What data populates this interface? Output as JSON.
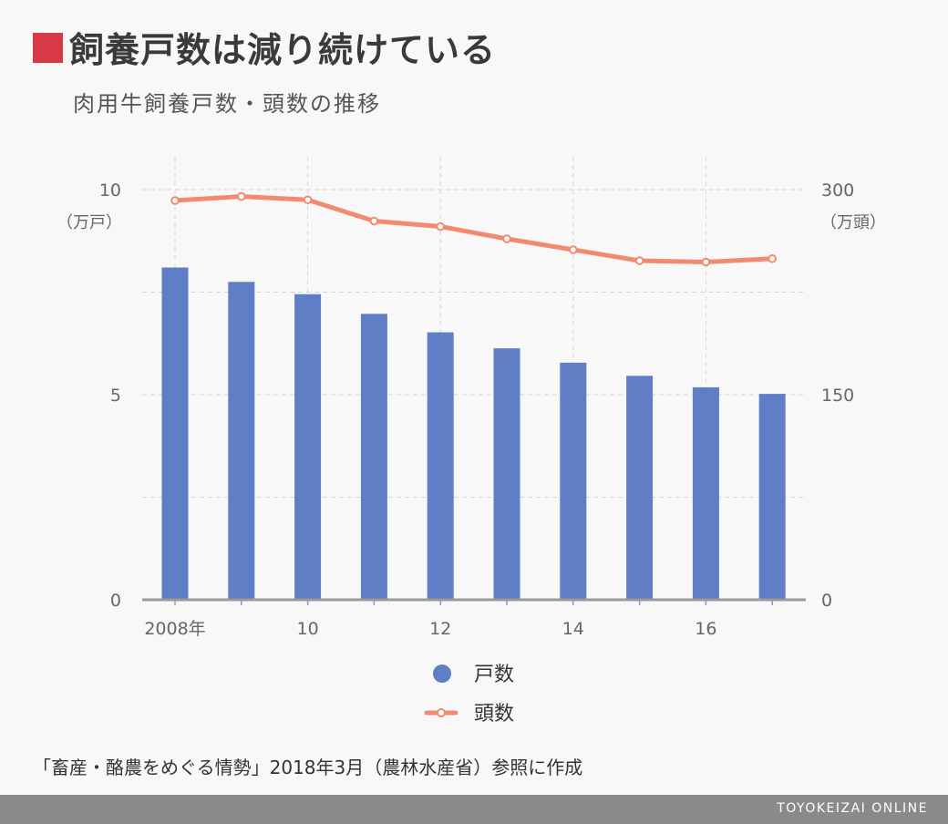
{
  "title": "飼養戸数は減り続けている",
  "subtitle": "肉用牛飼養戸数・頭数の推移",
  "source": "「畜産・酪農をめぐる情勢」2018年3月（農林水産省）参照に作成",
  "footer": "TOYOKEIZAI ONLINE",
  "colors": {
    "title_marker": "#d73a46",
    "bars": "#5f7ec5",
    "line": "#f28a72",
    "footer_bg": "#8a8a8a"
  },
  "chart_data": {
    "type": "bar+line",
    "categories": [
      "2008",
      "2009",
      "2010",
      "2011",
      "2012",
      "2013",
      "2014",
      "2015",
      "2016",
      "2017"
    ],
    "x_tick_labels": [
      "2008年",
      "",
      "10",
      "",
      "12",
      "",
      "14",
      "",
      "16",
      ""
    ],
    "series": [
      {
        "name": "戸数",
        "type": "bar",
        "axis": "left",
        "values": [
          8.1,
          7.75,
          7.45,
          6.97,
          6.52,
          6.13,
          5.78,
          5.46,
          5.18,
          5.02
        ]
      },
      {
        "name": "頭数",
        "type": "line",
        "axis": "right",
        "values": [
          292,
          295,
          292.5,
          277,
          273,
          264,
          256,
          248,
          247,
          249.5
        ]
      }
    ],
    "left_axis": {
      "unit_label": "（万戸）",
      "range": [
        0,
        10
      ],
      "tick_values": [
        0,
        5,
        10
      ],
      "tick_labels": [
        "0",
        "5",
        "10"
      ]
    },
    "right_axis": {
      "unit_label": "（万頭）",
      "range": [
        0,
        300
      ],
      "tick_values": [
        0,
        150,
        300
      ],
      "tick_labels": [
        "0",
        "150",
        "300"
      ]
    },
    "grid": true,
    "legend_placement": "bottom"
  }
}
